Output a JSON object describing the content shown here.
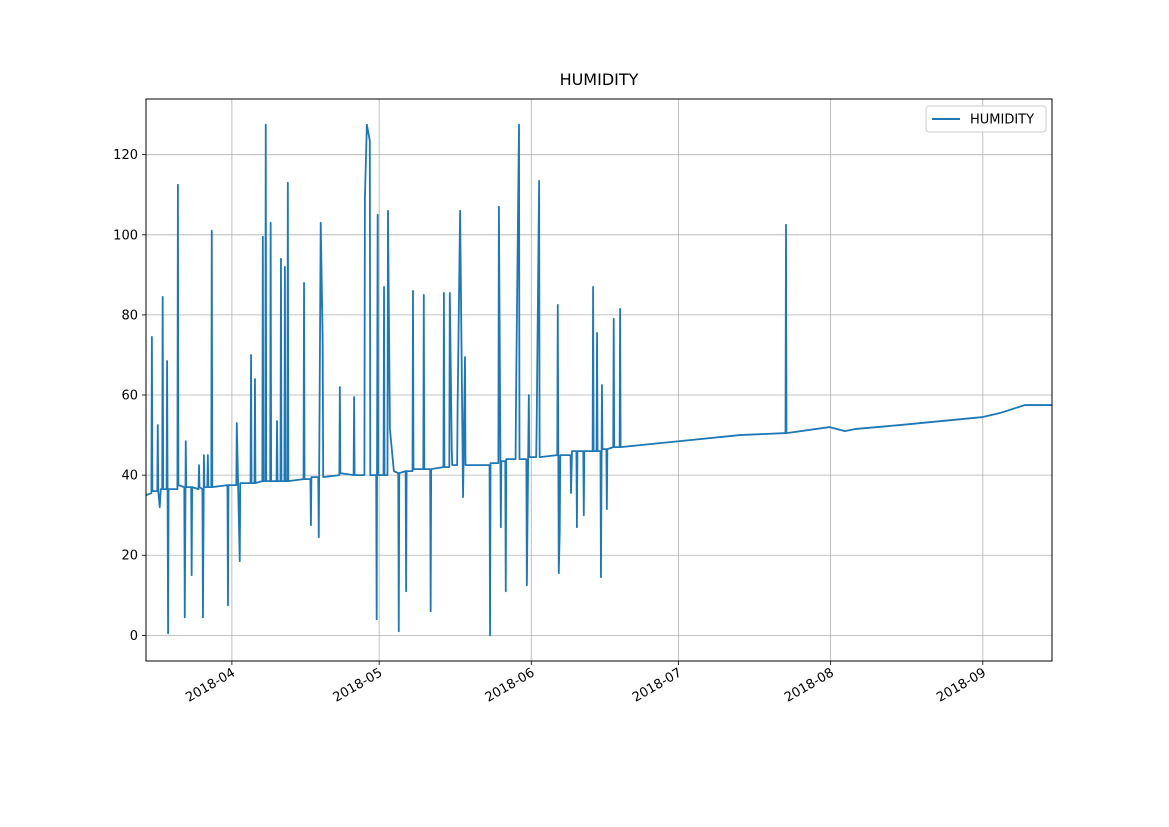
{
  "chart_data": {
    "type": "line",
    "title": "HUMIDITY",
    "x": [
      73.5,
      74.6,
      74.7,
      74.8,
      75.8,
      75.9,
      76.0,
      76.3,
      76.5,
      76.8,
      76.9,
      77.0,
      77.7,
      77.8,
      78.0,
      78.1,
      79.9,
      80.0,
      80.1,
      81.3,
      81.4,
      81.6,
      81.7,
      82.7,
      82.8,
      82.9,
      84.2,
      84.3,
      84.4,
      85.0,
      85.1,
      85.3,
      85.4,
      86.0,
      86.1,
      86.2,
      86.8,
      86.9,
      87.0,
      90.1,
      90.2,
      90.3,
      91.9,
      92.0,
      92.6,
      92.7,
      94.8,
      94.9,
      95.0,
      95.6,
      95.7,
      95.8,
      97.2,
      97.3,
      97.4,
      97.8,
      97.9,
      98.0,
      98.8,
      98.9,
      99.0,
      100.1,
      100.2,
      100.3,
      100.9,
      101.0,
      101.1,
      101.7,
      101.8,
      101.9,
      102.3,
      102.4,
      102.5,
      105.6,
      105.7,
      105.8,
      107.0,
      107.1,
      107.2,
      108.6,
      108.7,
      109.1,
      109.5,
      109.6,
      112.9,
      113.0,
      113.1,
      115.8,
      115.9,
      116.0,
      118.0,
      118.1,
      118.5,
      119.1,
      119.2,
      120.4,
      120.5,
      120.7,
      120.8,
      121.9,
      122.0,
      122.1,
      122.7,
      122.8,
      123.2,
      124.0,
      124.9,
      125.0,
      125.1,
      126.4,
      126.5,
      126.6,
      127.8,
      127.9,
      128.0,
      130.0,
      130.1,
      130.2,
      131.4,
      131.5,
      131.6,
      134.1,
      134.2,
      134.3,
      135.3,
      135.4,
      135.8,
      135.9,
      136.9,
      137.0,
      137.5,
      138.1,
      138.5,
      138.6,
      143.5,
      143.6,
      143.7,
      145.3,
      145.4,
      145.8,
      145.9,
      146.7,
      146.8,
      146.9,
      148.8,
      148.9,
      149.5,
      149.6,
      151.0,
      151.1,
      151.5,
      151.6,
      153.0,
      153.1,
      153.6,
      153.7,
      157.3,
      157.4,
      157.6,
      157.8,
      157.9,
      160.0,
      160.1,
      160.3,
      161.2,
      161.3,
      161.4,
      162.6,
      162.7,
      162.8,
      164.5,
      164.6,
      164.7,
      165.3,
      165.4,
      165.5,
      166.1,
      166.2,
      166.4,
      166.5,
      167.3,
      167.4,
      167.5,
      168.7,
      168.8,
      168.9,
      170.0,
      170.1,
      170.2,
      182.3,
      194.5,
      203.8,
      203.9,
      204.0,
      212.8,
      215.9,
      217.9,
      227.1,
      244.0,
      247.5,
      252.6,
      258.1
    ],
    "series": [
      {
        "name": "HUMIDITY",
        "color": "#1f77b4",
        "values": [
          35,
          35.5,
          74.5,
          36,
          36,
          52.5,
          36,
          32,
          36.5,
          36.5,
          84.5,
          36.5,
          36.5,
          68.5,
          0.5,
          36.5,
          36.5,
          112.5,
          37.5,
          37,
          4.5,
          48.5,
          37,
          37,
          15,
          37,
          36.5,
          42.5,
          37,
          36.5,
          4.5,
          45,
          37,
          37,
          45,
          37,
          37,
          101,
          37,
          37.5,
          7.5,
          37.5,
          37.5,
          53,
          18.5,
          38,
          38,
          70,
          38,
          38,
          64,
          38,
          38.5,
          99.5,
          38.5,
          38.5,
          127.5,
          38.5,
          38.5,
          103,
          38.5,
          38.5,
          53.5,
          38.5,
          38.5,
          94,
          38.5,
          38.5,
          92,
          38.5,
          38.5,
          113,
          38.5,
          39,
          88,
          39,
          39,
          27.5,
          39.5,
          39.5,
          24.5,
          103,
          73.5,
          39.5,
          40,
          62,
          40.5,
          40,
          59.5,
          40,
          40,
          109,
          127.5,
          123.5,
          40,
          40,
          4,
          105,
          40,
          40,
          87,
          40,
          40,
          106,
          51.5,
          41,
          40.5,
          1,
          40.5,
          41,
          11,
          41,
          41,
          86,
          41.5,
          41.5,
          85,
          41.5,
          41.5,
          6,
          41.5,
          42,
          85.5,
          42,
          42,
          85.5,
          46.5,
          42.5,
          42.5,
          58,
          106,
          34.5,
          69.5,
          42.5,
          42.5,
          0,
          43,
          43,
          107,
          27,
          43.5,
          43.5,
          11,
          44,
          44,
          60,
          127.5,
          44,
          44,
          12.5,
          60,
          44.5,
          44.5,
          52.5,
          113.5,
          44.5,
          45,
          82.5,
          15.5,
          26,
          45,
          45,
          35.5,
          46,
          46,
          27,
          46,
          46,
          30,
          46,
          46,
          87,
          46,
          46,
          75.5,
          46,
          46,
          14.5,
          62.5,
          46.5,
          46.5,
          31.5,
          46.5,
          47,
          79,
          47,
          47,
          81.5,
          47,
          48.5,
          50,
          50.5,
          102.5,
          50.5,
          52,
          51,
          51.5,
          52.5,
          54.5,
          55.5,
          57.5,
          57.5
        ]
      }
    ],
    "xlim": [
      73.5,
      258.1
    ],
    "xticks": [
      {
        "value": 91,
        "label": "2018-04"
      },
      {
        "value": 121,
        "label": "2018-05"
      },
      {
        "value": 152,
        "label": "2018-06"
      },
      {
        "value": 182,
        "label": "2018-07"
      },
      {
        "value": 213,
        "label": "2018-08"
      },
      {
        "value": 244,
        "label": "2018-09"
      }
    ],
    "ylim": [
      -6.4,
      133.9
    ],
    "yticks": [
      0,
      20,
      40,
      60,
      80,
      100,
      120
    ],
    "grid": true,
    "legend": "upper right"
  }
}
